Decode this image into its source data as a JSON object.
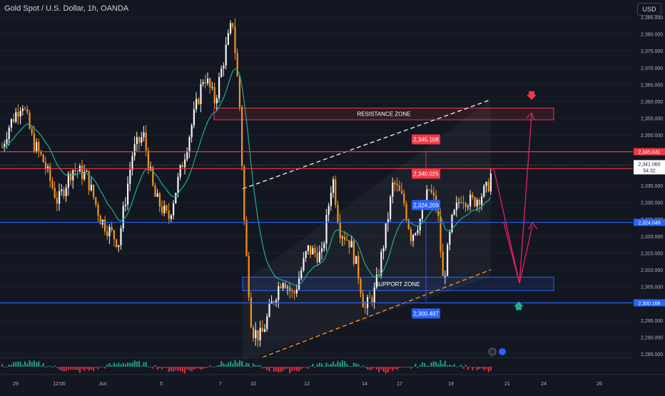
{
  "header": {
    "symbol_title": "Gold Spot / U.S. Dollar, 1h, OANDA",
    "currency": "USD"
  },
  "colors": {
    "background": "#131722",
    "bull": "#f5f5f5",
    "bear": "#f7931a",
    "resistance": "#f23645",
    "support": "#2962ff",
    "ma_line": "#22ab94",
    "axis_text": "#b2b5be",
    "projection": "#e91e63"
  },
  "chart_data": {
    "type": "candlestick",
    "y_axis": {
      "ylim": [
        2283,
        2388
      ],
      "ticks": [
        "2,285.000",
        "2,290.000",
        "2,295.000",
        "2,300.000",
        "2,305.000",
        "2,310.000",
        "2,315.000",
        "2,320.000",
        "2,325.000",
        "2,330.000",
        "2,335.000",
        "2,340.000",
        "2,345.000",
        "2,350.000",
        "2,355.000",
        "2,360.000",
        "2,365.000",
        "2,370.000",
        "2,375.000",
        "2,380.000",
        "2,385.000"
      ]
    },
    "x_axis": {
      "ticks": [
        "29",
        "12:00",
        "Jun",
        "5",
        "7",
        "10",
        "12",
        "14",
        "17",
        "19",
        "21",
        "24",
        "26"
      ]
    },
    "zones": [
      {
        "label": "RESISTANCE ZONE",
        "from": 2354.5,
        "to": 2358.0
      },
      {
        "label": "SUPPORT ZONE",
        "from": 2303.8,
        "to": 2307.8
      }
    ],
    "levels": [
      {
        "value": 2345.041,
        "label": "2,345.041",
        "kind": "resistance"
      },
      {
        "value": 2340.021,
        "label": "2,340.021",
        "kind": "resistance"
      },
      {
        "value": 2324.049,
        "label": "2,324.049",
        "kind": "support"
      },
      {
        "value": 2300.166,
        "label": "2,300.166",
        "kind": "support"
      }
    ],
    "price_labels": [
      {
        "text": "2,345.108",
        "kind": "resistance"
      },
      {
        "text": "2,340.025",
        "kind": "resistance"
      },
      {
        "text": "2,324.209",
        "kind": "support"
      },
      {
        "text": "2,300.487",
        "kind": "support"
      }
    ],
    "last_price": {
      "value": 2341.06,
      "label": "2,341.060",
      "countdown": "54:32"
    },
    "oscillator_value": "0.981",
    "oscillator_zero": "0.000"
  }
}
